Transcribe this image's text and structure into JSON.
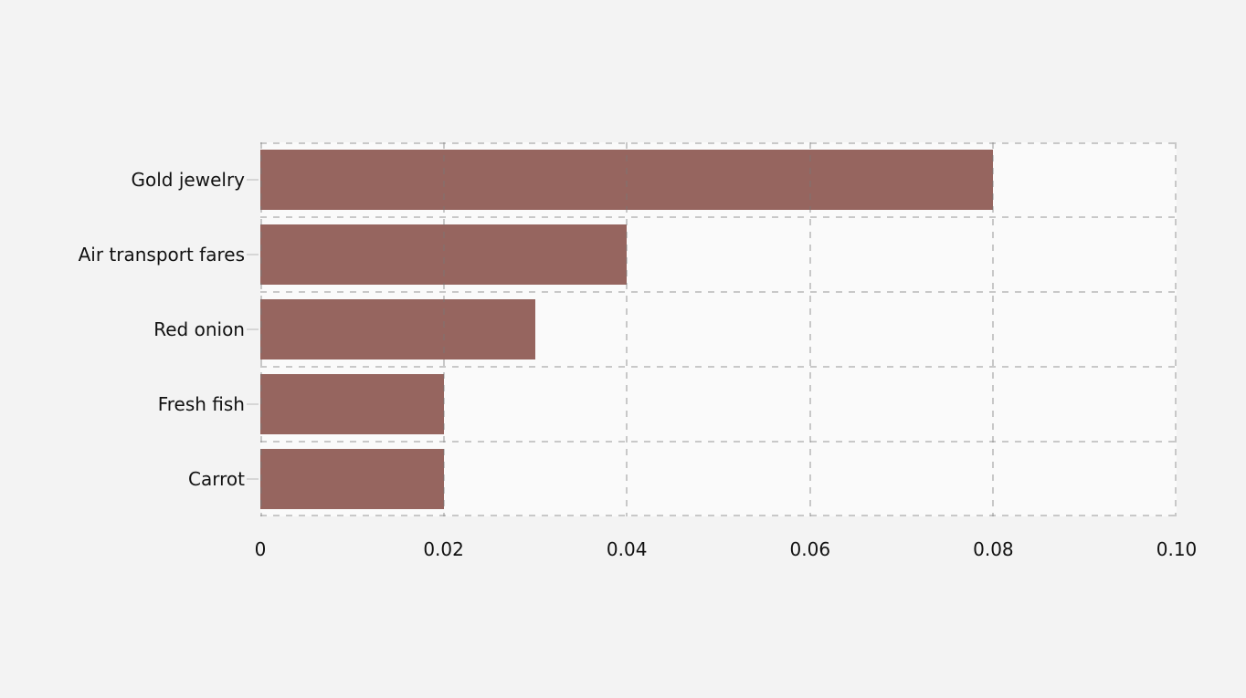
{
  "chart_data": {
    "type": "bar",
    "orientation": "horizontal",
    "title": "",
    "xlabel": "",
    "ylabel": "",
    "categories": [
      "Gold jewelry",
      "Air transport fares",
      "Red onion",
      "Fresh fish",
      "Carrot"
    ],
    "values": [
      0.08,
      0.04,
      0.03,
      0.02,
      0.02
    ],
    "xlim": [
      0,
      0.1
    ],
    "x_tick_values": [
      0,
      0.02,
      0.04,
      0.06,
      0.08,
      0.1
    ],
    "x_tick_labels": [
      "0",
      "0.02",
      "0.04",
      "0.06",
      "0.08",
      "0.10"
    ],
    "grid": "dashed gridlines on both axes, drawn over bars",
    "legend": "none",
    "colors": {
      "bar": "#96655f",
      "page_background": "#f3f3f3",
      "plot_background": "#fafafa",
      "gridline": "rgba(120,120,120,0.38)",
      "tick_mark": "#d6d6d6",
      "text": "#111111"
    }
  }
}
